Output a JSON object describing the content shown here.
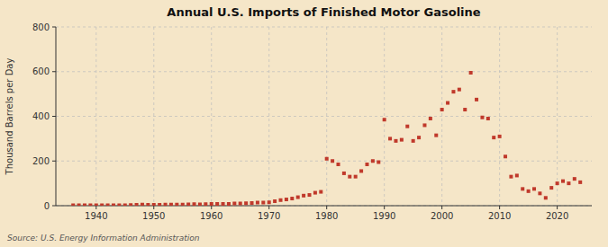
{
  "chart_data": {
    "type": "scatter",
    "title": "Annual U.S. Imports of Finished Motor Gasoline",
    "y_label": "Thousand Barrels per Day",
    "source": "Source: U.S. Energy Information Administration",
    "color": "#c0392b",
    "marker": "square",
    "grid": true,
    "xlim": [
      1933,
      2026
    ],
    "xticks": [
      1940,
      1950,
      1960,
      1970,
      1980,
      1990,
      2000,
      2010,
      2020
    ],
    "ylim": [
      0,
      800
    ],
    "yticks": [
      0,
      200,
      400,
      600,
      800
    ],
    "x": [
      1936,
      1937,
      1938,
      1939,
      1940,
      1941,
      1942,
      1943,
      1944,
      1945,
      1946,
      1947,
      1948,
      1949,
      1950,
      1951,
      1952,
      1953,
      1954,
      1955,
      1956,
      1957,
      1958,
      1959,
      1960,
      1961,
      1962,
      1963,
      1964,
      1965,
      1966,
      1967,
      1968,
      1969,
      1970,
      1971,
      1972,
      1973,
      1974,
      1975,
      1976,
      1977,
      1978,
      1979,
      1980,
      1981,
      1982,
      1983,
      1984,
      1985,
      1986,
      1987,
      1988,
      1989,
      1990,
      1991,
      1992,
      1993,
      1994,
      1995,
      1996,
      1997,
      1998,
      1999,
      2000,
      2001,
      2002,
      2003,
      2004,
      2005,
      2006,
      2007,
      2008,
      2009,
      2010,
      2011,
      2012,
      2013,
      2014,
      2015,
      2016,
      2017,
      2018,
      2019,
      2020,
      2021,
      2022,
      2023,
      2024
    ],
    "values": [
      2,
      2,
      2,
      2,
      2,
      2,
      2,
      2,
      2,
      2,
      3,
      4,
      5,
      4,
      4,
      4,
      5,
      5,
      5,
      5,
      6,
      7,
      6,
      7,
      8,
      8,
      8,
      8,
      10,
      10,
      11,
      12,
      14,
      14,
      15,
      20,
      25,
      28,
      32,
      38,
      45,
      48,
      58,
      62,
      210,
      200,
      185,
      145,
      130,
      130,
      155,
      185,
      200,
      195,
      385,
      300,
      290,
      295,
      355,
      290,
      305,
      360,
      390,
      315,
      430,
      460,
      510,
      520,
      430,
      595,
      475,
      395,
      390,
      305,
      310,
      220,
      130,
      135,
      75,
      65,
      75,
      55,
      35,
      80,
      100,
      110,
      100,
      120,
      105
    ]
  }
}
